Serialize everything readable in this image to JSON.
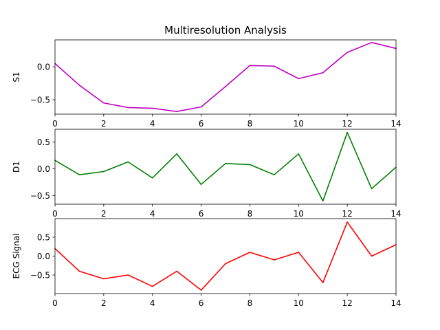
{
  "figure": {
    "title": "Multiresolution Analysis"
  },
  "chart_data": [
    {
      "type": "line",
      "title": "Multiresolution Analysis",
      "ylabel": "S1",
      "xlabel": "",
      "color": "#bf00bf",
      "x": [
        0,
        1,
        2,
        3,
        4,
        5,
        6,
        7,
        8,
        9,
        10,
        11,
        12,
        13,
        14
      ],
      "y": [
        0.05,
        -0.28,
        -0.55,
        -0.62,
        -0.63,
        -0.68,
        -0.61,
        -0.3,
        0.02,
        0.01,
        -0.18,
        -0.09,
        0.22,
        0.37,
        0.28
      ],
      "xlim": [
        0,
        14
      ],
      "ylim": [
        -0.72,
        0.41
      ],
      "xticks": [
        0,
        2,
        4,
        6,
        8,
        10,
        12,
        14
      ],
      "yticks": [
        0.0,
        -0.5
      ],
      "ytick_labels": [
        "0.0",
        "−0.5"
      ],
      "grid": false
    },
    {
      "type": "line",
      "title": "",
      "ylabel": "D1",
      "xlabel": "",
      "color": "#008000",
      "x": [
        0,
        1,
        2,
        3,
        4,
        5,
        6,
        7,
        8,
        9,
        10,
        11,
        12,
        13,
        14
      ],
      "y": [
        0.16,
        -0.11,
        -0.05,
        0.13,
        -0.17,
        0.28,
        -0.29,
        0.1,
        0.08,
        -0.11,
        0.28,
        -0.6,
        0.68,
        -0.37,
        0.03
      ],
      "xlim": [
        0,
        14
      ],
      "ylim": [
        -0.66,
        0.74
      ],
      "xticks": [
        0,
        2,
        4,
        6,
        8,
        10,
        12,
        14
      ],
      "yticks": [
        0.5,
        0.0,
        -0.5
      ],
      "ytick_labels": [
        "0.5",
        "0.0",
        "−0.5"
      ],
      "grid": false
    },
    {
      "type": "line",
      "title": "",
      "ylabel": "ECG Signal",
      "xlabel": "",
      "color": "#ff0000",
      "x": [
        0,
        1,
        2,
        3,
        4,
        5,
        6,
        7,
        8,
        9,
        10,
        11,
        12,
        13,
        14
      ],
      "y": [
        0.2,
        -0.4,
        -0.6,
        -0.5,
        -0.8,
        -0.4,
        -0.9,
        -0.2,
        0.1,
        -0.1,
        0.1,
        -0.7,
        0.9,
        0.0,
        0.3
      ],
      "xlim": [
        0,
        14
      ],
      "ylim": [
        -0.99,
        0.99
      ],
      "xticks": [
        0,
        2,
        4,
        6,
        8,
        10,
        12,
        14
      ],
      "yticks": [
        0.5,
        0.0,
        -0.5
      ],
      "ytick_labels": [
        "0.5",
        "0.0",
        "−0.5"
      ],
      "grid": false
    }
  ]
}
